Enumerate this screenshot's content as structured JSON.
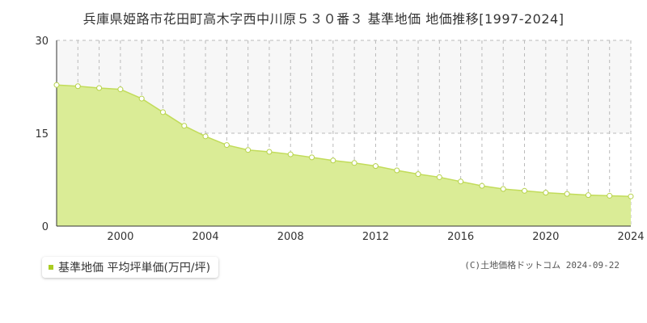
{
  "title": "兵庫県姫路市花田町高木字西中川原５３０番３ 基準地価 地価推移[1997-2024]",
  "legend": {
    "label": "基準地価 平均坪単価(万円/坪)"
  },
  "copyright": "(C)土地価格ドットコム 2024-09-22",
  "colors": {
    "area_fill": "#daec96",
    "area_line": "#c2dc5a",
    "marker_fill": "#ffffff",
    "marker_stroke": "#b6d24a",
    "grid": "#bbbbbb",
    "upper_band": "#f7f7f7",
    "legend_marker": "#aacc22"
  },
  "chart_data": {
    "type": "area",
    "x": [
      1997,
      1998,
      1999,
      2000,
      2001,
      2002,
      2003,
      2004,
      2005,
      2006,
      2007,
      2008,
      2009,
      2010,
      2011,
      2012,
      2013,
      2014,
      2015,
      2016,
      2017,
      2018,
      2019,
      2020,
      2021,
      2022,
      2023,
      2024
    ],
    "series": [
      {
        "name": "基準地価 平均坪単価(万円/坪)",
        "values": [
          22.8,
          22.6,
          22.3,
          22.1,
          20.6,
          18.4,
          16.2,
          14.5,
          13.1,
          12.3,
          12.0,
          11.6,
          11.1,
          10.6,
          10.2,
          9.7,
          9.0,
          8.4,
          7.9,
          7.2,
          6.5,
          6.0,
          5.7,
          5.4,
          5.2,
          5.0,
          4.9,
          4.8
        ]
      }
    ],
    "xlim": [
      1997,
      2024
    ],
    "ylim": [
      0,
      30
    ],
    "yticks": [
      0,
      15,
      30
    ],
    "xticks": [
      2000,
      2004,
      2008,
      2012,
      2016,
      2020,
      2024
    ],
    "xlabel": "",
    "ylabel": "",
    "grid": true,
    "legend_position": "bottom-left"
  }
}
